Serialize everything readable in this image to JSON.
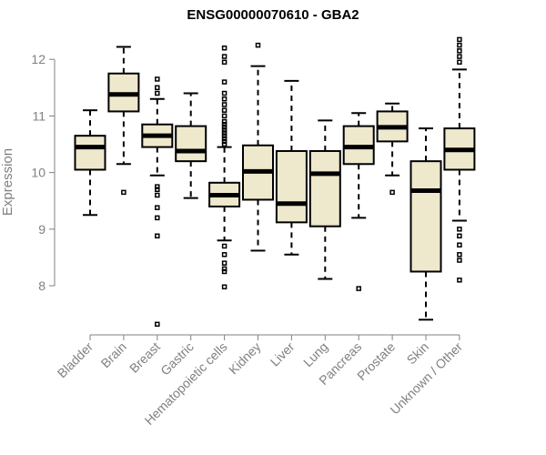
{
  "chart_data": {
    "type": "boxplot",
    "title": "ENSG00000070610 - GBA2",
    "xlabel": "",
    "ylabel": "Expression",
    "ylim": [
      7.2,
      12.6
    ],
    "yticks": [
      8,
      9,
      10,
      11,
      12
    ],
    "grid": false,
    "legend": "none",
    "box_fill": "#EEE8CD",
    "categories": [
      "Bladder",
      "Brain",
      "Breast",
      "Gastric",
      "Hematopoietic cells",
      "Kidney",
      "Liver",
      "Lung",
      "Pancreas",
      "Prostate",
      "Skin",
      "Unknown / Other"
    ],
    "boxes": [
      {
        "whisker_low": 9.25,
        "q1": 10.05,
        "median": 10.45,
        "q3": 10.65,
        "whisker_high": 11.1,
        "outliers": []
      },
      {
        "whisker_low": 10.15,
        "q1": 11.08,
        "median": 11.38,
        "q3": 11.75,
        "whisker_high": 12.22,
        "outliers": [
          9.65
        ]
      },
      {
        "whisker_low": 9.95,
        "q1": 10.45,
        "median": 10.65,
        "q3": 10.85,
        "whisker_high": 11.3,
        "outliers": [
          11.65,
          11.5,
          11.4,
          9.75,
          9.7,
          9.6,
          9.38,
          9.2,
          8.88,
          7.32
        ]
      },
      {
        "whisker_low": 9.55,
        "q1": 10.2,
        "median": 10.38,
        "q3": 10.82,
        "whisker_high": 11.4,
        "outliers": []
      },
      {
        "whisker_low": 8.8,
        "q1": 9.4,
        "median": 9.6,
        "q3": 9.82,
        "whisker_high": 10.45,
        "outliers": [
          12.2,
          12.05,
          11.95,
          11.6,
          11.4,
          11.3,
          11.2,
          11.1,
          11.0,
          10.9,
          10.85,
          10.8,
          10.75,
          10.7,
          10.65,
          10.6,
          10.55,
          10.5,
          8.7,
          8.55,
          8.4,
          8.3,
          8.25,
          7.98
        ]
      },
      {
        "whisker_low": 8.62,
        "q1": 9.52,
        "median": 10.02,
        "q3": 10.48,
        "whisker_high": 11.88,
        "outliers": [
          12.25
        ]
      },
      {
        "whisker_low": 8.55,
        "q1": 9.12,
        "median": 9.45,
        "q3": 10.38,
        "whisker_high": 11.62,
        "outliers": []
      },
      {
        "whisker_low": 8.12,
        "q1": 9.05,
        "median": 9.98,
        "q3": 10.38,
        "whisker_high": 10.92,
        "outliers": []
      },
      {
        "whisker_low": 9.2,
        "q1": 10.15,
        "median": 10.45,
        "q3": 10.82,
        "whisker_high": 11.05,
        "outliers": [
          7.95
        ]
      },
      {
        "whisker_low": 9.95,
        "q1": 10.55,
        "median": 10.8,
        "q3": 11.08,
        "whisker_high": 11.22,
        "outliers": [
          9.65
        ]
      },
      {
        "whisker_low": 7.4,
        "q1": 8.25,
        "median": 9.68,
        "q3": 10.2,
        "whisker_high": 10.78,
        "outliers": []
      },
      {
        "whisker_low": 9.15,
        "q1": 10.05,
        "median": 10.4,
        "q3": 10.78,
        "whisker_high": 11.82,
        "outliers": [
          12.35,
          12.25,
          12.15,
          12.05,
          11.95,
          9.0,
          8.88,
          8.72,
          8.55,
          8.45,
          8.1
        ]
      }
    ]
  }
}
